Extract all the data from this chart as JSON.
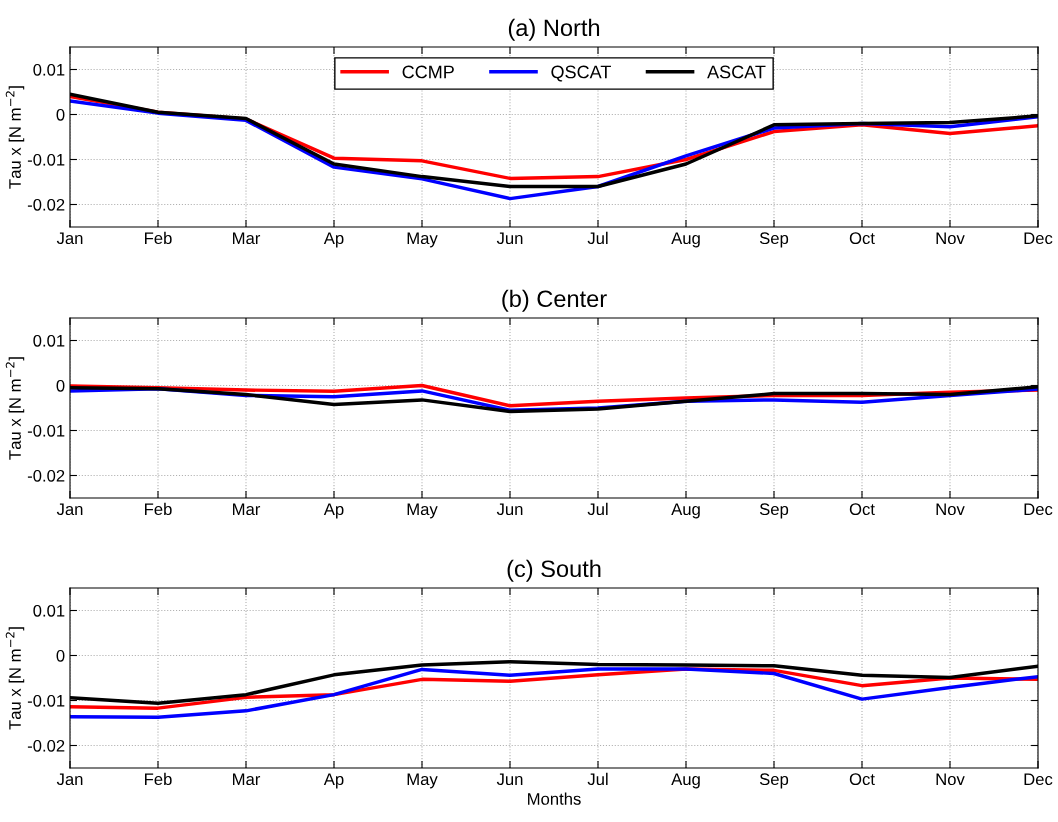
{
  "chart_data": [
    {
      "type": "line",
      "title": "(a) North",
      "ylabel": "Tau x [N m$^{−2}$]",
      "categories": [
        "Jan",
        "Feb",
        "Mar",
        "Ap",
        "May",
        "Jun",
        "Jul",
        "Aug",
        "Sep",
        "Oct",
        "Nov",
        "Dec"
      ],
      "ylim": [
        -0.025,
        0.015
      ],
      "yticks": [
        -0.02,
        -0.01,
        0,
        0.01
      ],
      "grid": true,
      "legend": "top",
      "marker": "none",
      "line_style": "solid",
      "series": [
        {
          "name": "CCMP",
          "color": "#ff0000",
          "values": [
            0.004,
            0.0005,
            -0.001,
            -0.0097,
            -0.0103,
            -0.0142,
            -0.0138,
            -0.01,
            -0.0038,
            -0.0023,
            -0.0042,
            -0.0025
          ]
        },
        {
          "name": "QSCAT",
          "color": "#0000ff",
          "values": [
            0.003,
            0.0003,
            -0.0013,
            -0.0117,
            -0.0143,
            -0.0187,
            -0.016,
            -0.0092,
            -0.003,
            -0.002,
            -0.0027,
            -0.0005
          ]
        },
        {
          "name": "ASCAT",
          "color": "#000000",
          "values": [
            0.0045,
            0.0005,
            -0.0009,
            -0.011,
            -0.0138,
            -0.016,
            -0.016,
            -0.011,
            -0.0023,
            -0.002,
            -0.0018,
            -0.0003
          ]
        }
      ]
    },
    {
      "type": "line",
      "title": "(b) Center",
      "ylabel": "Tau x [N m$^{−2}$]",
      "categories": [
        "Jan",
        "Feb",
        "Mar",
        "Ap",
        "May",
        "Jun",
        "Jul",
        "Aug",
        "Sep",
        "Oct",
        "Nov",
        "Dec"
      ],
      "ylim": [
        -0.025,
        0.015
      ],
      "yticks": [
        -0.02,
        -0.01,
        0,
        0.01
      ],
      "grid": true,
      "marker": "none",
      "line_style": "solid",
      "series": [
        {
          "color": "#ff0000",
          "values": [
            -0.0001,
            -0.0005,
            -0.001,
            -0.0013,
            0.0,
            -0.0045,
            -0.0035,
            -0.0028,
            -0.0022,
            -0.0022,
            -0.0015,
            -0.001
          ]
        },
        {
          "color": "#0000ff",
          "values": [
            -0.0012,
            -0.0007,
            -0.0022,
            -0.0025,
            -0.0012,
            -0.0055,
            -0.005,
            -0.0035,
            -0.0032,
            -0.0037,
            -0.0022,
            -0.0008
          ]
        },
        {
          "color": "#000000",
          "values": [
            -0.0005,
            -0.0007,
            -0.002,
            -0.0042,
            -0.0032,
            -0.0058,
            -0.0052,
            -0.0035,
            -0.0018,
            -0.0018,
            -0.002,
            -0.0003
          ]
        }
      ]
    },
    {
      "type": "line",
      "title": "(c) South",
      "xlabel": "Months",
      "ylabel": "Tau x [N m$^{−2}$]",
      "categories": [
        "Jan",
        "Feb",
        "Mar",
        "Ap",
        "May",
        "Jun",
        "Jul",
        "Aug",
        "Sep",
        "Oct",
        "Nov",
        "Dec"
      ],
      "ylim": [
        -0.025,
        0.015
      ],
      "yticks": [
        -0.02,
        -0.01,
        0,
        0.01
      ],
      "grid": true,
      "marker": "none",
      "line_style": "solid",
      "series": [
        {
          "color": "#ff0000",
          "values": [
            -0.0114,
            -0.0117,
            -0.0093,
            -0.0087,
            -0.0053,
            -0.0057,
            -0.0043,
            -0.003,
            -0.0033,
            -0.0067,
            -0.005,
            -0.0053
          ]
        },
        {
          "color": "#0000ff",
          "values": [
            -0.0136,
            -0.0137,
            -0.0123,
            -0.0087,
            -0.0031,
            -0.0044,
            -0.003,
            -0.003,
            -0.004,
            -0.0097,
            -0.0071,
            -0.0047
          ]
        },
        {
          "color": "#000000",
          "values": [
            -0.0094,
            -0.0106,
            -0.0087,
            -0.0043,
            -0.0021,
            -0.0014,
            -0.002,
            -0.0021,
            -0.0023,
            -0.0044,
            -0.0049,
            -0.0024
          ]
        }
      ]
    }
  ]
}
